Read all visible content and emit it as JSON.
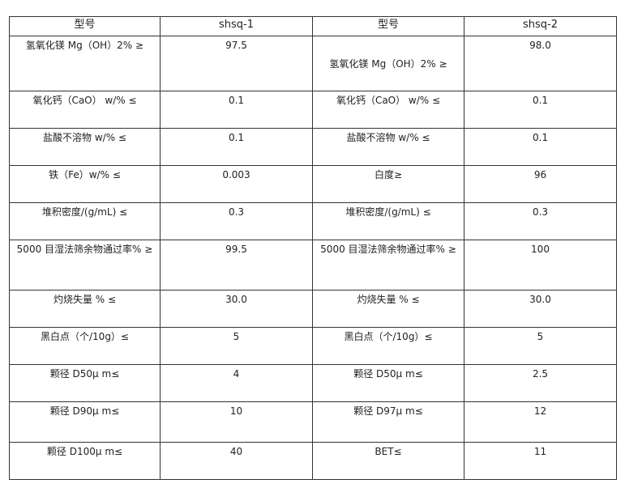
{
  "header": [
    "型号",
    "shsq-1",
    "型号",
    "shsq-2"
  ],
  "rows": [
    [
      "氢氧化镁 Mg（OH）2% ≥",
      "97.5",
      "氢氧化镁 Mg（OH）2% ≥",
      "98.0"
    ],
    [
      "氧化钙（CaO） w/% ≤",
      "0.1",
      "氧化钙（CaO） w/% ≤",
      "0.1"
    ],
    [
      "盐酸不溶物  w/% ≤",
      "0.1",
      "盐酸不溶物  w/% ≤",
      "0.1"
    ],
    [
      "铁（Fe）w/% ≤",
      "0.003",
      "白度≥",
      "96"
    ],
    [
      "堆积密度/(g/mL) ≤",
      "0.3",
      "堆积密度/(g/mL) ≤",
      "0.3"
    ],
    [
      "5000 目湿法筛余物通过率% ≥",
      "99.5",
      "5000 目湿法筛余物通过率% ≥",
      "100"
    ],
    [
      "灼烧失量 % ≤",
      "30.0",
      "灼烧失量 % ≤",
      "30.0"
    ],
    [
      "黑白点（个/10g）≤",
      "5",
      "黑白点（个/10g）≤",
      "5"
    ],
    [
      "颗径 D50μ m≤",
      "4",
      "颗径 D50μ m≤",
      "2.5"
    ],
    [
      "颗径 D90μ m≤",
      "10",
      "颗径 D97μ m≤",
      "12"
    ],
    [
      "颗径 D100μ m≤",
      "40",
      "BET≤",
      "11"
    ]
  ]
}
